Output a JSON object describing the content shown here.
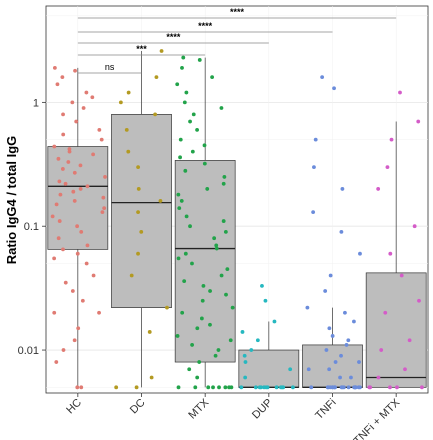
{
  "chart_data": {
    "type": "boxplot",
    "ylabel": "Ratio IgG4 / total IgG",
    "xlabel": "",
    "y_scale": "log10",
    "ylim": [
      0.0045,
      6.0
    ],
    "y_ticks": [
      {
        "value": 0.01,
        "label": "0.01"
      },
      {
        "value": 0.1,
        "label": "0.1"
      },
      {
        "value": 1,
        "label": "1"
      }
    ],
    "grid": true,
    "categories": [
      "HC",
      "DC",
      "MTX",
      "DUP",
      "TNFi",
      "TNFi + MTX"
    ],
    "colors": {
      "HC": "#e07b73",
      "DC": "#b39a22",
      "MTX": "#22a34a",
      "DUP": "#26b8c0",
      "TNFi": "#6b8cdb",
      "TNFi + MTX": "#d45cc8"
    },
    "boxes": [
      {
        "category": "HC",
        "min": 0.005,
        "q1": 0.065,
        "median": 0.21,
        "q3": 0.44,
        "max": 1.9
      },
      {
        "category": "DC",
        "min": 0.005,
        "q1": 0.022,
        "median": 0.155,
        "q3": 0.8,
        "max": 2.6
      },
      {
        "category": "MTX",
        "min": 0.005,
        "q1": 0.008,
        "median": 0.066,
        "q3": 0.34,
        "max": 2.3
      },
      {
        "category": "DUP",
        "min": 0.005,
        "q1": 0.005,
        "median": 0.005,
        "q3": 0.01,
        "max": 0.017
      },
      {
        "category": "TNFi",
        "min": 0.005,
        "q1": 0.005,
        "median": 0.005,
        "q3": 0.011,
        "max": 0.022
      },
      {
        "category": "TNFi + MTX",
        "min": 0.005,
        "q1": 0.005,
        "median": 0.006,
        "q3": 0.042,
        "max": 0.7
      }
    ],
    "points": {
      "HC": [
        0.005,
        0.005,
        0.008,
        0.01,
        0.012,
        0.015,
        0.02,
        0.02,
        0.025,
        0.03,
        0.035,
        0.04,
        0.05,
        0.055,
        0.06,
        0.065,
        0.07,
        0.08,
        0.09,
        0.1,
        0.11,
        0.12,
        0.13,
        0.14,
        0.15,
        0.16,
        0.17,
        0.18,
        0.19,
        0.2,
        0.21,
        0.22,
        0.23,
        0.25,
        0.27,
        0.29,
        0.31,
        0.33,
        0.35,
        0.38,
        0.4,
        0.42,
        0.44,
        0.5,
        0.55,
        0.6,
        0.7,
        0.8,
        0.9,
        1.0,
        1.1,
        1.2,
        1.4,
        1.6,
        1.8,
        1.9
      ],
      "DC": [
        0.005,
        0.005,
        0.006,
        0.014,
        0.022,
        0.04,
        0.06,
        0.09,
        0.13,
        0.16,
        0.2,
        0.3,
        0.4,
        0.6,
        0.8,
        1.0,
        1.2,
        1.6,
        2.6
      ],
      "MTX": [
        0.005,
        0.005,
        0.005,
        0.005,
        0.005,
        0.005,
        0.005,
        0.005,
        0.006,
        0.007,
        0.008,
        0.009,
        0.01,
        0.011,
        0.012,
        0.013,
        0.015,
        0.016,
        0.018,
        0.02,
        0.022,
        0.025,
        0.028,
        0.03,
        0.033,
        0.036,
        0.04,
        0.045,
        0.05,
        0.055,
        0.06,
        0.066,
        0.07,
        0.08,
        0.09,
        0.1,
        0.11,
        0.12,
        0.14,
        0.16,
        0.18,
        0.2,
        0.22,
        0.25,
        0.28,
        0.32,
        0.36,
        0.4,
        0.45,
        0.5,
        0.6,
        0.7,
        0.8,
        0.9,
        1.0,
        1.2,
        1.4,
        1.6,
        1.9,
        2.2,
        2.3
      ],
      "DUP": [
        0.005,
        0.005,
        0.005,
        0.005,
        0.005,
        0.005,
        0.005,
        0.005,
        0.005,
        0.005,
        0.005,
        0.005,
        0.006,
        0.007,
        0.008,
        0.009,
        0.01,
        0.012,
        0.014,
        0.017,
        0.025,
        0.033
      ],
      "TNFi": [
        0.005,
        0.005,
        0.005,
        0.005,
        0.005,
        0.005,
        0.005,
        0.005,
        0.005,
        0.005,
        0.005,
        0.005,
        0.005,
        0.005,
        0.005,
        0.005,
        0.005,
        0.005,
        0.005,
        0.005,
        0.006,
        0.006,
        0.007,
        0.007,
        0.008,
        0.008,
        0.009,
        0.01,
        0.011,
        0.012,
        0.013,
        0.015,
        0.017,
        0.02,
        0.022,
        0.03,
        0.04,
        0.06,
        0.09,
        0.13,
        0.2,
        0.3,
        0.5,
        1.3,
        1.6
      ],
      "TNFi + MTX": [
        0.005,
        0.005,
        0.005,
        0.005,
        0.005,
        0.006,
        0.007,
        0.01,
        0.012,
        0.02,
        0.025,
        0.04,
        0.06,
        0.1,
        0.2,
        0.3,
        0.5,
        0.7,
        1.2
      ]
    },
    "comparisons": [
      {
        "from": "HC",
        "to": "DC",
        "label": "ns"
      },
      {
        "from": "HC",
        "to": "MTX",
        "label": "***"
      },
      {
        "from": "HC",
        "to": "DUP",
        "label": "****"
      },
      {
        "from": "HC",
        "to": "TNFi",
        "label": "****"
      },
      {
        "from": "HC",
        "to": "TNFi + MTX",
        "label": "****"
      }
    ]
  }
}
